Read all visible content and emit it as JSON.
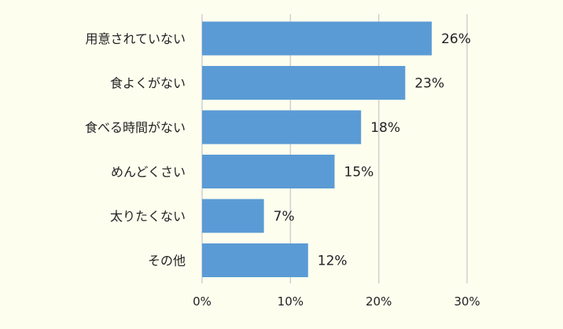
{
  "chart_data": {
    "type": "bar",
    "orientation": "horizontal",
    "title": "",
    "xlabel": "",
    "ylabel": "",
    "categories": [
      "用意されていない",
      "食よくがない",
      "食べる時間がない",
      "めんどくさい",
      "太りたくない",
      "その他"
    ],
    "values": [
      26,
      23,
      18,
      15,
      7,
      12
    ],
    "value_labels": [
      "26%",
      "23%",
      "18%",
      "15%",
      "7%",
      "12%"
    ],
    "xlim": [
      0,
      30
    ],
    "ticks": [
      0,
      10,
      20,
      30
    ],
    "tick_labels": [
      "0%",
      "10%",
      "20%",
      "30%"
    ],
    "grid": true,
    "legend": "none",
    "colors": {
      "bar": "#5b9bd5",
      "grid": "#d0d0d0",
      "background": "#fefeef",
      "text": "#222222"
    }
  }
}
